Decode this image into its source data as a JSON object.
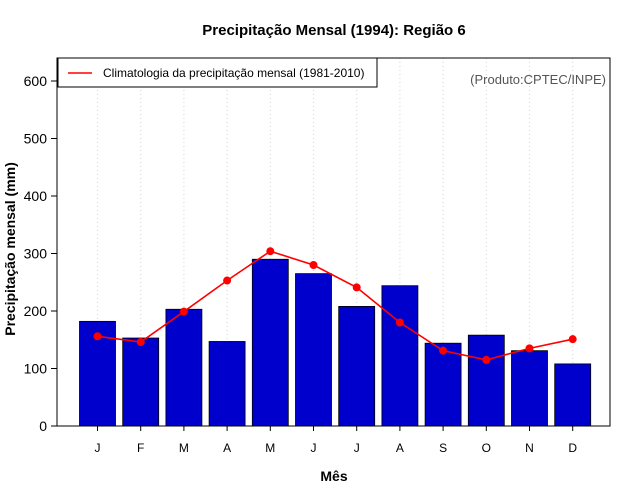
{
  "chart_data": {
    "type": "bar",
    "title": "Precipitação Mensal (1994): Região 6",
    "xlabel": "Mês",
    "ylabel": "Precipitação mensal (mm)",
    "ylim": [
      0,
      640
    ],
    "yticks": [
      0,
      100,
      200,
      300,
      400,
      500,
      600
    ],
    "categories": [
      "J",
      "F",
      "M",
      "A",
      "M",
      "J",
      "J",
      "A",
      "S",
      "O",
      "N",
      "D"
    ],
    "series": [
      {
        "name": "Precipitação mensal 1994",
        "type": "bar",
        "color": "#0000CD",
        "values": [
          182,
          153,
          203,
          147,
          290,
          265,
          208,
          244,
          144,
          158,
          131,
          108
        ]
      },
      {
        "name": "Climatologia da precipitação mensal (1981-2010)",
        "type": "line",
        "color": "#FF0000",
        "values": [
          156,
          146,
          199,
          253,
          304,
          280,
          241,
          180,
          131,
          115,
          135,
          151
        ]
      }
    ],
    "legend": {
      "label": "Climatologia da precipitação mensal (1981-2010)",
      "position": "top-left"
    },
    "credit": "(Produto:CPTEC/INPE)",
    "grid": "vertical dotted"
  }
}
